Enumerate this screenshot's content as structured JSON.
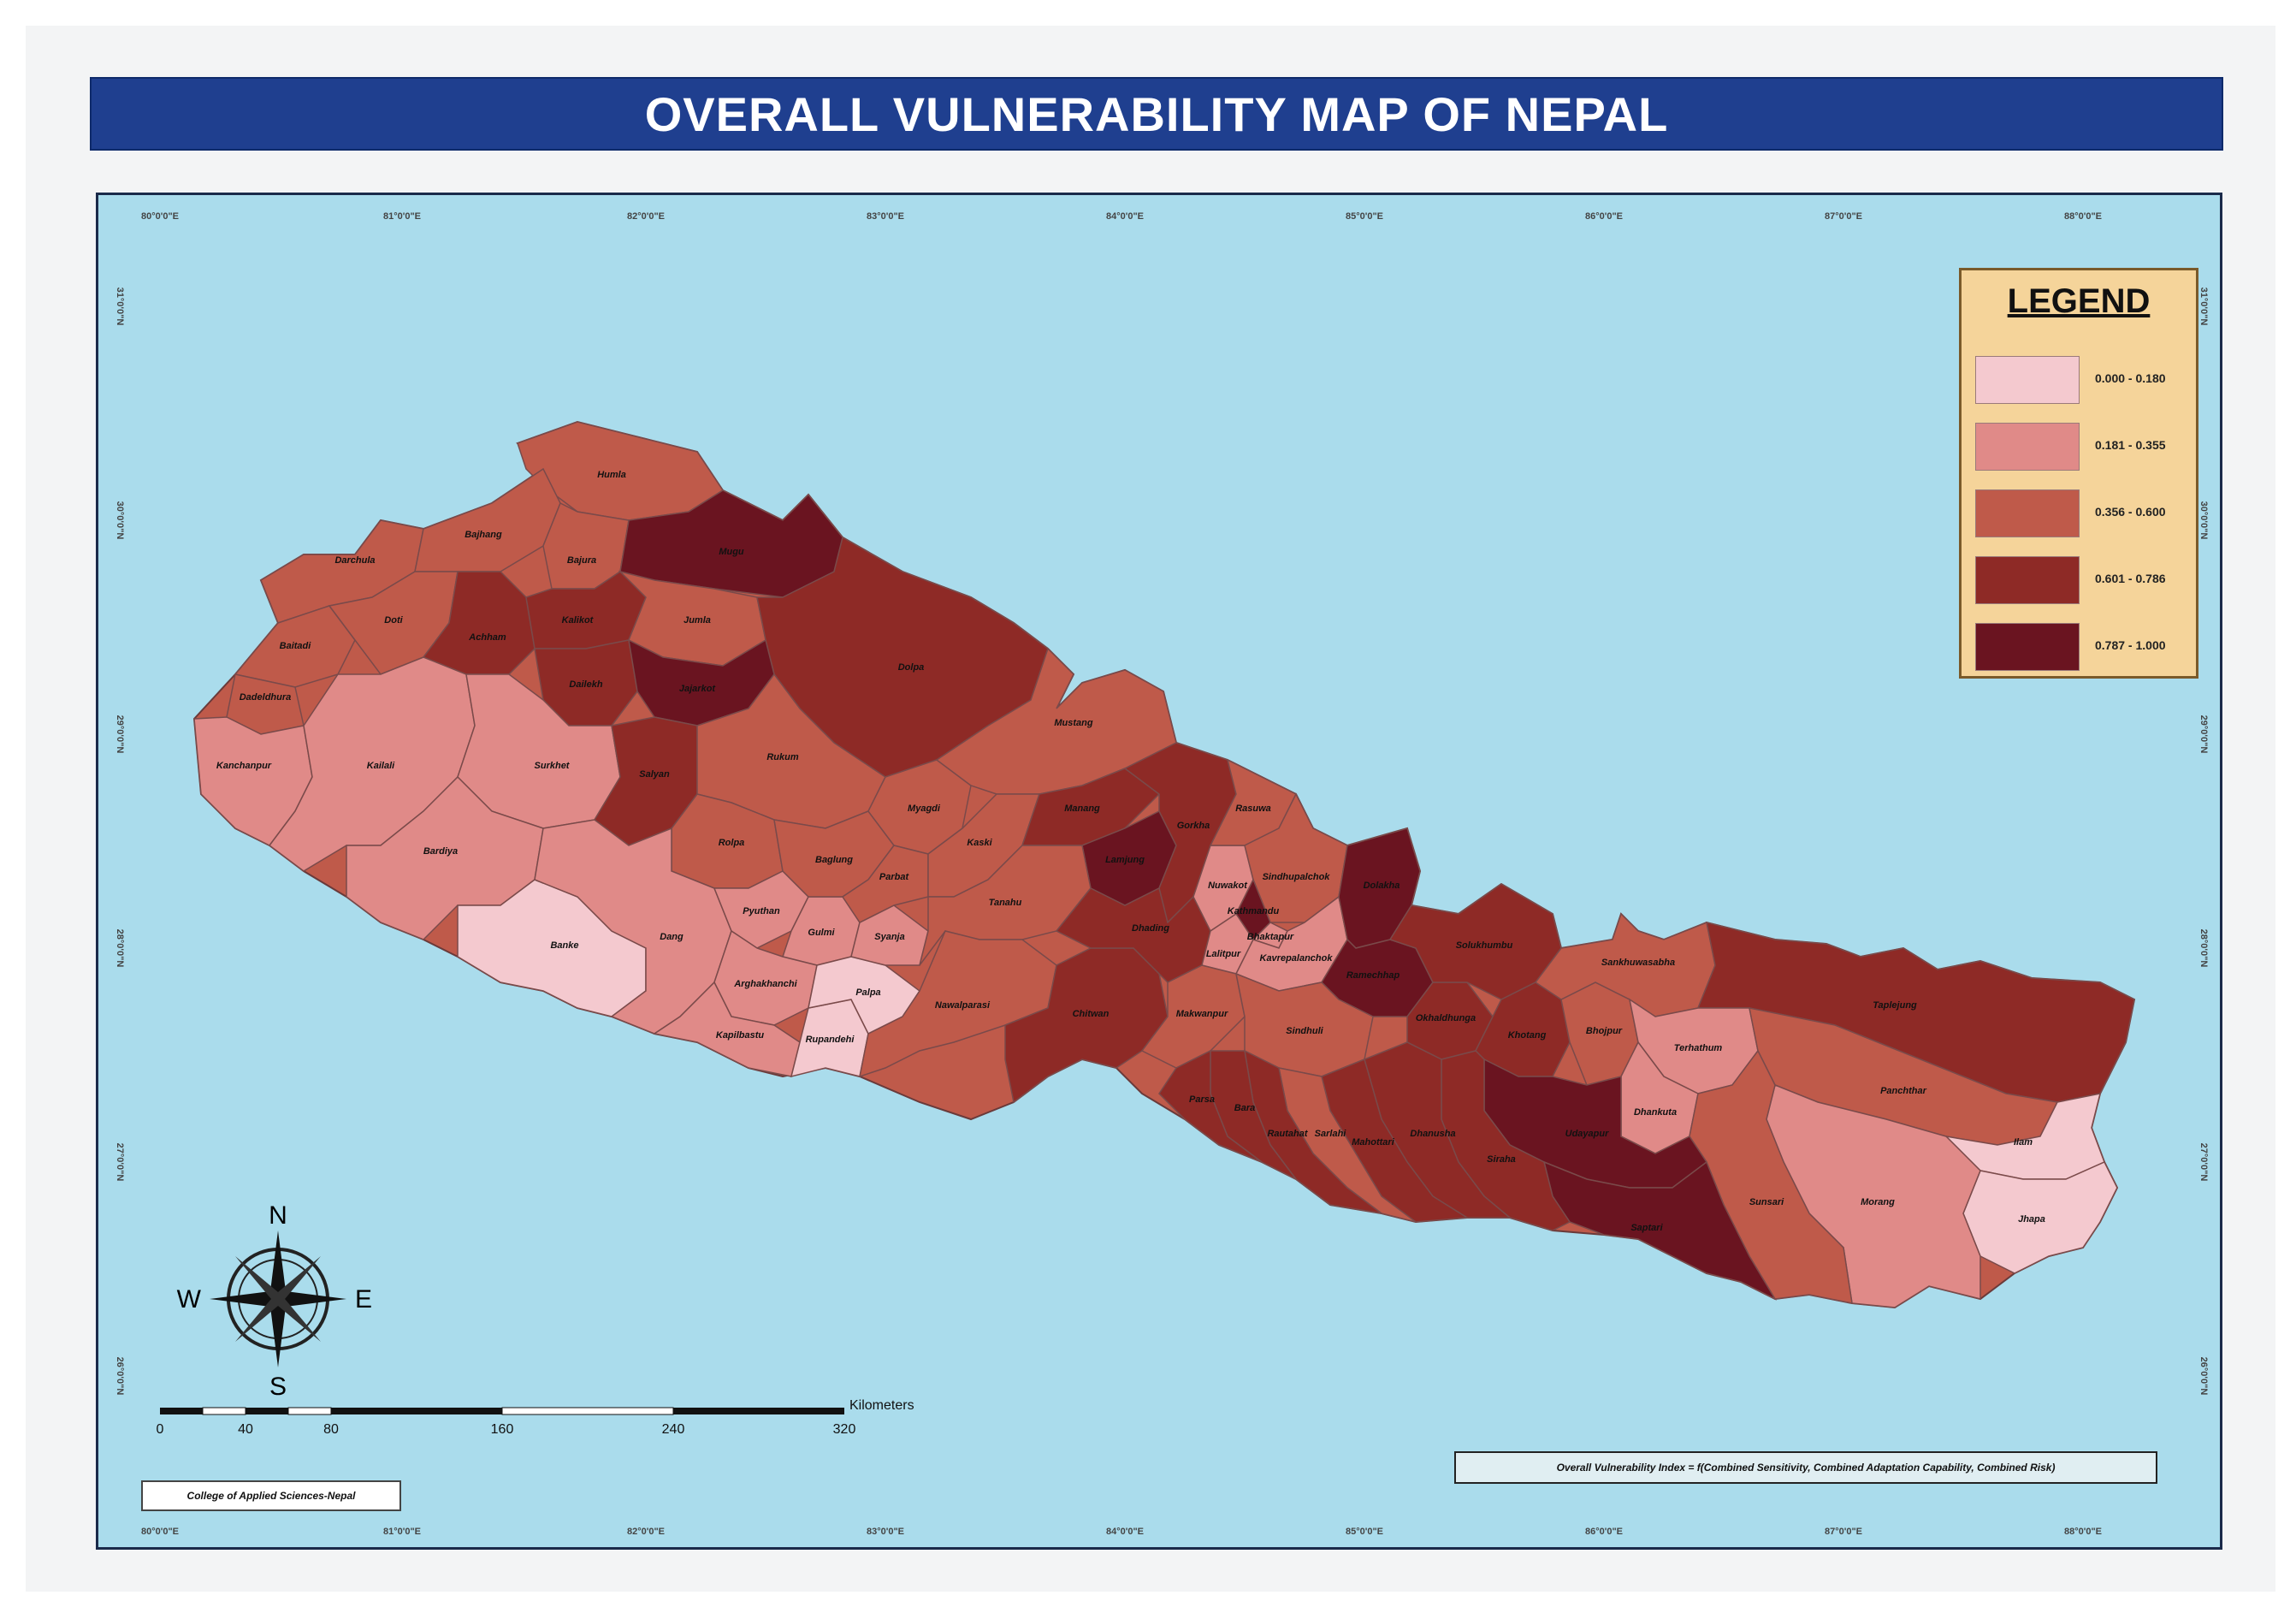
{
  "title": "OVERALL VULNERABILITY MAP OF NEPAL",
  "legend": {
    "title": "LEGEND",
    "classes": [
      {
        "label": "0.000 - 0.180",
        "color": "#f4c9cf"
      },
      {
        "label": "0.181 - 0.355",
        "color": "#e08a88"
      },
      {
        "label": "0.356 - 0.600",
        "color": "#bf5a4a"
      },
      {
        "label": "0.601 - 0.786",
        "color": "#8e2a26"
      },
      {
        "label": "0.787 - 1.000",
        "color": "#6a1420"
      }
    ]
  },
  "graticule": {
    "top": [
      "80°0'0\"E",
      "81°0'0\"E",
      "82°0'0\"E",
      "83°0'0\"E",
      "84°0'0\"E",
      "85°0'0\"E",
      "86°0'0\"E",
      "87°0'0\"E",
      "88°0'0\"E"
    ],
    "bottom": [
      "80°0'0\"E",
      "81°0'0\"E",
      "82°0'0\"E",
      "83°0'0\"E",
      "84°0'0\"E",
      "85°0'0\"E",
      "86°0'0\"E",
      "87°0'0\"E",
      "88°0'0\"E"
    ],
    "left": [
      "31°0'0\"N",
      "30°0'0\"N",
      "29°0'0\"N",
      "28°0'0\"N",
      "27°0'0\"N",
      "26°0'0\"N"
    ],
    "right": [
      "31°0'0\"N",
      "30°0'0\"N",
      "29°0'0\"N",
      "28°0'0\"N",
      "27°0'0\"N",
      "26°0'0\"N"
    ]
  },
  "districts": [
    {
      "name": "Humla",
      "class": 2
    },
    {
      "name": "Darchula",
      "class": 2
    },
    {
      "name": "Bajhang",
      "class": 2
    },
    {
      "name": "Bajura",
      "class": 2
    },
    {
      "name": "Mugu",
      "class": 4
    },
    {
      "name": "Baitadi",
      "class": 2
    },
    {
      "name": "Dadeldhura",
      "class": 2
    },
    {
      "name": "Doti",
      "class": 2
    },
    {
      "name": "Achham",
      "class": 3
    },
    {
      "name": "Kalikot",
      "class": 3
    },
    {
      "name": "Jumla",
      "class": 2
    },
    {
      "name": "Dolpa",
      "class": 3
    },
    {
      "name": "Dailekh",
      "class": 3
    },
    {
      "name": "Jajarkot",
      "class": 4
    },
    {
      "name": "Kanchanpur",
      "class": 1
    },
    {
      "name": "Kailali",
      "class": 1
    },
    {
      "name": "Surkhet",
      "class": 1
    },
    {
      "name": "Bardiya",
      "class": 1
    },
    {
      "name": "Banke",
      "class": 0
    },
    {
      "name": "Salyan",
      "class": 3
    },
    {
      "name": "Rukum",
      "class": 2
    },
    {
      "name": "Rolpa",
      "class": 2
    },
    {
      "name": "Dang",
      "class": 1
    },
    {
      "name": "Pyuthan",
      "class": 1
    },
    {
      "name": "Gulmi",
      "class": 1
    },
    {
      "name": "Baglung",
      "class": 2
    },
    {
      "name": "Myagdi",
      "class": 2
    },
    {
      "name": "Mustang",
      "class": 2
    },
    {
      "name": "Arghakhanchi",
      "class": 1
    },
    {
      "name": "Kapilbastu",
      "class": 1
    },
    {
      "name": "Rupandehi",
      "class": 0
    },
    {
      "name": "Palpa",
      "class": 0
    },
    {
      "name": "Syanja",
      "class": 1
    },
    {
      "name": "Parbat",
      "class": 2
    },
    {
      "name": "Kaski",
      "class": 2
    },
    {
      "name": "Manang",
      "class": 3
    },
    {
      "name": "Lamjung",
      "class": 4
    },
    {
      "name": "Gorkha",
      "class": 3
    },
    {
      "name": "Tanahu",
      "class": 2
    },
    {
      "name": "Nawalparasi",
      "class": 2
    },
    {
      "name": "Chitwan",
      "class": 3
    },
    {
      "name": "Dhading",
      "class": 3
    },
    {
      "name": "Nuwakot",
      "class": 1
    },
    {
      "name": "Rasuwa",
      "class": 2
    },
    {
      "name": "Sindhupalchok",
      "class": 2
    },
    {
      "name": "Kathmandu",
      "class": 4
    },
    {
      "name": "Bhaktapur",
      "class": 1
    },
    {
      "name": "Lalitpur",
      "class": 1
    },
    {
      "name": "Kavrepalanchok",
      "class": 1
    },
    {
      "name": "Makwanpur",
      "class": 2
    },
    {
      "name": "Dolakha",
      "class": 4
    },
    {
      "name": "Ramechhap",
      "class": 4
    },
    {
      "name": "Sindhuli",
      "class": 2
    },
    {
      "name": "Okhaldhunga",
      "class": 3
    },
    {
      "name": "Solukhumbu",
      "class": 3
    },
    {
      "name": "Khotang",
      "class": 3
    },
    {
      "name": "Bhojpur",
      "class": 2
    },
    {
      "name": "Sankhuwasabha",
      "class": 2
    },
    {
      "name": "Taplejung",
      "class": 3
    },
    {
      "name": "Terhathum",
      "class": 1
    },
    {
      "name": "Panchthar",
      "class": 2
    },
    {
      "name": "Dhankuta",
      "class": 1
    },
    {
      "name": "Ilam",
      "class": 0
    },
    {
      "name": "Jhapa",
      "class": 0
    },
    {
      "name": "Morang",
      "class": 1
    },
    {
      "name": "Sunsari",
      "class": 2
    },
    {
      "name": "Udayapur",
      "class": 4
    },
    {
      "name": "Saptari",
      "class": 4
    },
    {
      "name": "Siraha",
      "class": 3
    },
    {
      "name": "Dhanusha",
      "class": 3
    },
    {
      "name": "Mahottari",
      "class": 3
    },
    {
      "name": "Sarlahi",
      "class": 2
    },
    {
      "name": "Rautahat",
      "class": 3
    },
    {
      "name": "Bara",
      "class": 3
    },
    {
      "name": "Parsa",
      "class": 3
    }
  ],
  "compass": {
    "n": "N",
    "s": "S",
    "e": "E",
    "w": "W"
  },
  "scale_bar": {
    "unit": "Kilometers",
    "ticks": [
      "0",
      "40",
      "80",
      "160",
      "240",
      "320"
    ]
  },
  "credit": "College of Applied Sciences-Nepal",
  "formula": "Overall Vulnerability Index = f(Combined Sensitivity, Combined Adaptation Capability, Combined Risk)"
}
